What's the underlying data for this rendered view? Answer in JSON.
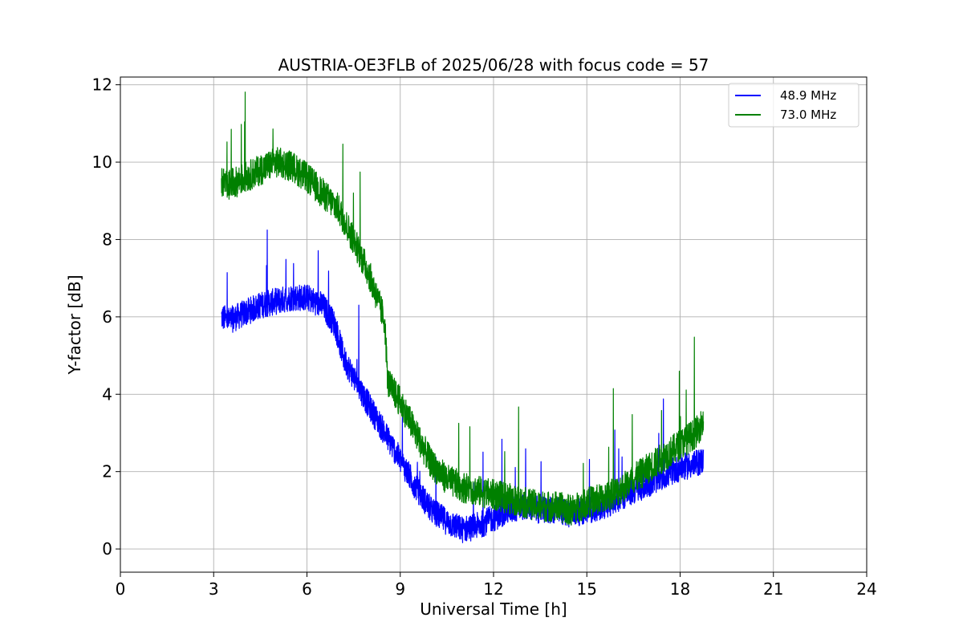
{
  "chart_data": {
    "type": "line",
    "title": "AUSTRIA-OE3FLB of 2025/06/28 with focus code = 57",
    "xlabel": "Universal Time [h]",
    "ylabel": "Y-factor [dB]",
    "xlim": [
      0,
      24
    ],
    "ylim": [
      -0.6,
      12.2
    ],
    "xticks": [
      0,
      3,
      6,
      9,
      12,
      15,
      18,
      21,
      24
    ],
    "yticks": [
      0,
      2,
      4,
      6,
      8,
      10,
      12
    ],
    "grid": true,
    "legend_position": "top-right",
    "series": [
      {
        "name": "48.9 MHz",
        "color": "#0000ff",
        "x": [
          3.25,
          3.5,
          4.0,
          4.5,
          5.0,
          5.5,
          6.0,
          6.5,
          6.9,
          7.2,
          7.6,
          8.0,
          8.5,
          9.0,
          9.5,
          10.0,
          10.5,
          11.0,
          11.5,
          12.0,
          12.5,
          13.0,
          13.5,
          14.0,
          14.5,
          15.0,
          15.5,
          16.0,
          16.5,
          17.0,
          17.5,
          18.0,
          18.5,
          18.75
        ],
        "values": [
          6.0,
          5.9,
          6.1,
          6.3,
          6.4,
          6.5,
          6.5,
          6.3,
          5.8,
          4.9,
          4.3,
          3.7,
          3.0,
          2.3,
          1.6,
          1.0,
          0.7,
          0.5,
          0.6,
          0.8,
          1.0,
          1.1,
          1.0,
          1.0,
          0.9,
          1.0,
          1.1,
          1.3,
          1.5,
          1.7,
          1.9,
          2.1,
          2.2,
          2.3
        ],
        "noise": 0.35
      },
      {
        "name": "73.0 MHz",
        "color": "#008000",
        "x": [
          3.25,
          3.5,
          4.0,
          4.5,
          5.0,
          5.5,
          6.0,
          6.5,
          7.0,
          7.5,
          8.0,
          8.5,
          8.6,
          9.0,
          9.5,
          10.0,
          10.5,
          11.0,
          11.5,
          12.0,
          12.5,
          13.0,
          13.5,
          14.0,
          14.5,
          15.0,
          15.5,
          16.0,
          16.5,
          17.0,
          17.5,
          18.0,
          18.5,
          18.75
        ],
        "values": [
          9.5,
          9.4,
          9.6,
          9.8,
          10.0,
          9.9,
          9.6,
          9.2,
          8.8,
          8.0,
          7.1,
          5.9,
          4.3,
          3.8,
          3.0,
          2.2,
          1.8,
          1.6,
          1.5,
          1.4,
          1.3,
          1.2,
          1.1,
          1.1,
          1.0,
          1.2,
          1.3,
          1.5,
          1.8,
          2.1,
          2.4,
          2.7,
          3.0,
          3.3
        ],
        "noise": 0.4
      }
    ]
  }
}
